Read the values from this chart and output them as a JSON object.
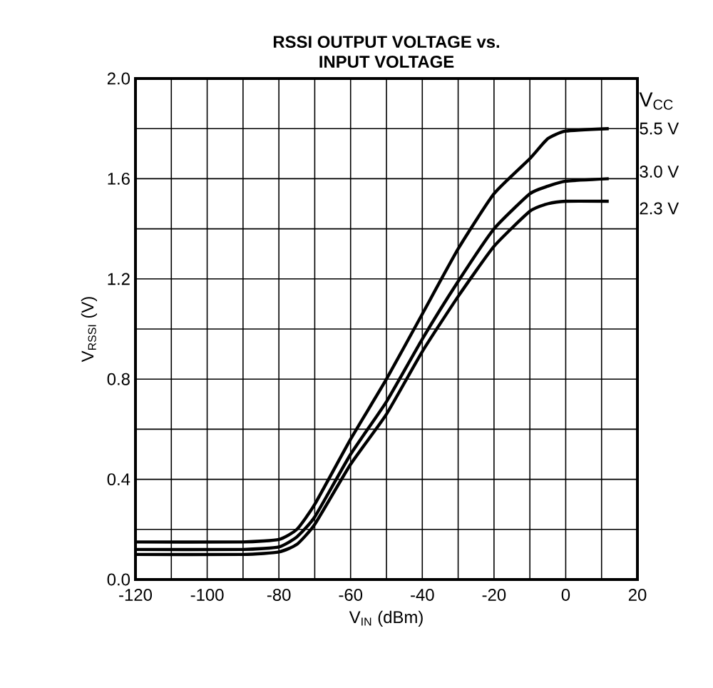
{
  "chart_data": {
    "type": "line",
    "title": "**RSSI OUTPUT VOLTAGE vs.**\n**INPUT VOLTAGE**",
    "xlabel": "V$_{IN}$ (dBm)",
    "ylabel": "V$_{RSSI}$ (V)",
    "legend_title": "V$_{CC}$",
    "xlim": [
      -120,
      20
    ],
    "ylim": [
      0,
      2.0
    ],
    "xticks": [
      -120,
      {
        "value": -110,
        "label": null
      },
      -100,
      {
        "value": -90,
        "label": null
      },
      -80,
      {
        "value": -70,
        "label": null
      },
      -60,
      {
        "value": -50,
        "label": null
      },
      -40,
      {
        "value": -30,
        "label": null
      },
      -20,
      {
        "value": -10,
        "label": null
      },
      0,
      {
        "value": 10,
        "label": null
      },
      20
    ],
    "yticks": [
      {
        "value": 0,
        "label": "0.0"
      },
      {
        "value": 0.2,
        "label": null
      },
      0.4,
      {
        "value": 0.6,
        "label": null
      },
      0.8,
      {
        "value": 1.0,
        "label": null
      },
      1.2,
      {
        "value": 1.4,
        "label": null
      },
      1.6,
      {
        "value": 1.8,
        "label": null
      },
      {
        "value": 2.0,
        "label": "2.0"
      }
    ],
    "grid": true,
    "marker": "none",
    "line_style": "solid",
    "series": [
      {
        "name": "5.5 V",
        "color": "#000000",
        "x": [
          -120,
          -90,
          -80,
          -75,
          -70,
          -60,
          -50,
          -40,
          -30,
          -20,
          -10,
          -5,
          0,
          12
        ],
        "values": [
          0.15,
          0.15,
          0.16,
          0.2,
          0.3,
          0.56,
          0.8,
          1.06,
          1.32,
          1.54,
          1.68,
          1.76,
          1.79,
          1.8
        ]
      },
      {
        "name": "3.0 V",
        "color": "#000000",
        "x": [
          -120,
          -90,
          -80,
          -75,
          -70,
          -60,
          -50,
          -40,
          -30,
          -20,
          -10,
          -5,
          0,
          12
        ],
        "values": [
          0.12,
          0.12,
          0.13,
          0.17,
          0.25,
          0.5,
          0.71,
          0.96,
          1.19,
          1.4,
          1.54,
          1.57,
          1.59,
          1.6
        ]
      },
      {
        "name": "2.3 V",
        "color": "#000000",
        "x": [
          -120,
          -90,
          -80,
          -75,
          -70,
          -60,
          -50,
          -40,
          -30,
          -20,
          -10,
          -5,
          0,
          12
        ],
        "values": [
          0.1,
          0.1,
          0.11,
          0.14,
          0.22,
          0.46,
          0.66,
          0.91,
          1.13,
          1.33,
          1.47,
          1.5,
          1.51,
          1.51
        ]
      }
    ]
  }
}
